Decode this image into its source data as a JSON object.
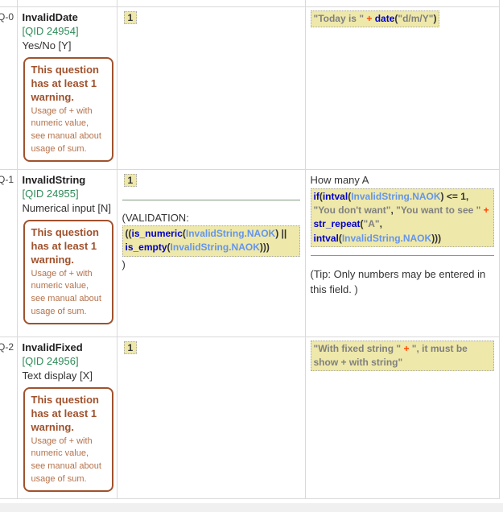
{
  "colors": {
    "warning_border": "#A0522D",
    "warning_text": "#A0522D",
    "warning_body_text": "#B5714A",
    "qid_green": "#2E8B57",
    "code_background": "#EEE8AA",
    "function_blue": "#0000CC",
    "variable_blue": "#6495ED",
    "string_gray": "#808080",
    "plus_red": "#FF4500",
    "separator_green": "#7E9C7E",
    "table_border": "#d9d9d9"
  },
  "warning": {
    "heading": "This question has at least 1 warning.",
    "body": "Usage of + with numeric value, see manual about usage of sum."
  },
  "rows": [
    {
      "row_id": "Q-0",
      "question": {
        "title": "InvalidDate",
        "qid": "[QID 24954]",
        "type": "Yes/No [Y]"
      },
      "relevance": {
        "value": "1"
      },
      "text": {
        "code": [
          [
            "str",
            "\"Today is \""
          ],
          [
            "plus",
            " + "
          ],
          [
            "fn",
            "date"
          ],
          [
            "op",
            "("
          ],
          [
            "str",
            "\"d/m/Y\""
          ],
          [
            "op",
            ")"
          ]
        ]
      }
    },
    {
      "row_id": "Q-1",
      "question": {
        "title": "InvalidString",
        "qid": "[QID 24955]",
        "type": "Numerical input [N]"
      },
      "relevance": {
        "value": "1"
      },
      "validation": {
        "open": "(VALIDATION:",
        "code": [
          [
            "op",
            "(("
          ],
          [
            "fn",
            "is_numeric"
          ],
          [
            "op",
            "("
          ],
          [
            "var",
            "InvalidString.NAOK"
          ],
          [
            "op",
            ") || "
          ],
          [
            "fn",
            "is_empty"
          ],
          [
            "op",
            "("
          ],
          [
            "var",
            "InvalidString.NAOK"
          ],
          [
            "op",
            ")))"
          ]
        ],
        "close": ")"
      },
      "text": {
        "intro": "How many A",
        "code": [
          [
            "fn",
            "if"
          ],
          [
            "op",
            "("
          ],
          [
            "fn",
            "intval"
          ],
          [
            "op",
            "("
          ],
          [
            "var",
            "InvalidString.NAOK"
          ],
          [
            "op",
            ") <= 1, "
          ],
          [
            "str",
            "\"You don't want\""
          ],
          [
            "op",
            ", "
          ],
          [
            "str",
            "\"You want to see \""
          ],
          [
            "plus",
            " + "
          ],
          [
            "fn",
            "str_repeat"
          ],
          [
            "op",
            "("
          ],
          [
            "str",
            "\"A\""
          ],
          [
            "op",
            ", "
          ],
          [
            "fn",
            "intval"
          ],
          [
            "op",
            "("
          ],
          [
            "var",
            "InvalidString.NAOK"
          ],
          [
            "op",
            ")))"
          ]
        ],
        "tip": "(Tip: Only numbers may be entered in this field. )"
      }
    },
    {
      "row_id": "Q-2",
      "question": {
        "title": "InvalidFixed",
        "qid": "[QID 24956]",
        "type": "Text display [X]"
      },
      "relevance": {
        "value": "1"
      },
      "text": {
        "code": [
          [
            "str",
            "\"With fixed string \""
          ],
          [
            "plus",
            " + "
          ],
          [
            "str",
            "\", it must be show + with string\""
          ]
        ]
      }
    }
  ]
}
